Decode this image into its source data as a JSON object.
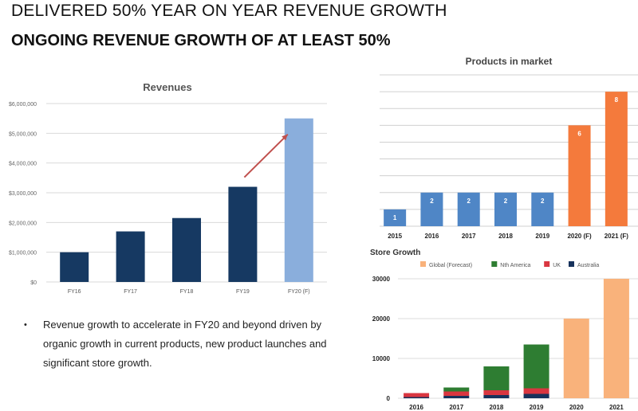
{
  "header": {
    "headline": "DELIVERED 50% YEAR ON YEAR REVENUE GROWTH",
    "subheadline": "ONGOING REVENUE GROWTH OF AT LEAST 50%"
  },
  "notes": {
    "bullet_marker": "•",
    "bullet_text": "Revenue growth to accelerate in FY20 and beyond driven by organic growth in current products, new product launches and significant store growth."
  },
  "chart_data": [
    {
      "id": "revenues",
      "type": "bar",
      "title": "Revenues",
      "categories": [
        "FY16",
        "FY17",
        "FY18",
        "FY19",
        "FY20 (F)"
      ],
      "values": [
        1000000,
        1700000,
        2150000,
        3200000,
        5500000
      ],
      "forecast": [
        false,
        false,
        false,
        false,
        true
      ],
      "y_ticks": [
        "$0",
        "$1,000,000",
        "$2,000,000",
        "$3,000,000",
        "$4,000,000",
        "$5,000,000",
        "$6,000,000"
      ],
      "ylim": [
        0,
        6000000
      ],
      "grid": true,
      "annotation": "arrow from FY19 toward FY20 (F)",
      "colors": {
        "actual": "#163962",
        "forecast": "#8aaedc",
        "arrow": "#c0504d"
      }
    },
    {
      "id": "products",
      "type": "bar",
      "title": "Products in market",
      "categories": [
        "2015",
        "2016",
        "2017",
        "2018",
        "2019",
        "2020 (F)",
        "2021 (F)"
      ],
      "values": [
        1,
        2,
        2,
        2,
        2,
        6,
        8
      ],
      "data_labels": [
        "1",
        "2",
        "2",
        "2",
        "2",
        "6",
        "8"
      ],
      "forecast": [
        false,
        false,
        false,
        false,
        false,
        true,
        true
      ],
      "ylim": [
        0,
        9
      ],
      "grid": true,
      "colors": {
        "actual": "#4f86c6",
        "forecast": "#f47a3c"
      }
    },
    {
      "id": "stores",
      "type": "bar",
      "stacked": true,
      "title": "Store Growth",
      "categories": [
        "2016",
        "2017",
        "2018",
        "2019",
        "2020",
        "2021"
      ],
      "y_ticks": [
        "0",
        "10000",
        "20000",
        "30000"
      ],
      "ylim": [
        0,
        30000
      ],
      "legend_position": "top",
      "grid": true,
      "series": [
        {
          "name": "Global (Forecast)",
          "color": "#f9b27b",
          "values": [
            0,
            0,
            0,
            0,
            20000,
            30000
          ]
        },
        {
          "name": "Nth America",
          "color": "#2e7d32",
          "values": [
            0,
            1000,
            6000,
            11000,
            0,
            0
          ]
        },
        {
          "name": "UK",
          "color": "#d93640",
          "values": [
            1000,
            1100,
            1200,
            1400,
            0,
            0
          ]
        },
        {
          "name": "Australia",
          "color": "#17325c",
          "values": [
            300,
            600,
            800,
            1100,
            0,
            0
          ]
        }
      ]
    }
  ]
}
